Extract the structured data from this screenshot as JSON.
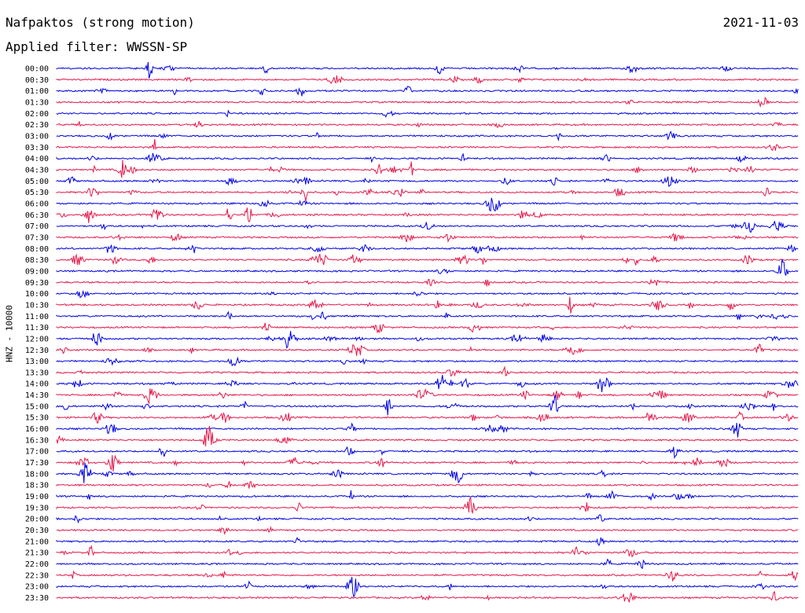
{
  "header": {
    "title": "Nafpaktos (strong motion)",
    "date": "2021-11-03",
    "filter": "Applied filter: WWSSN-SP"
  },
  "chart_data": {
    "type": "line",
    "title": "Nafpaktos (strong motion)",
    "subtitle": "Applied filter: WWSSN-SP",
    "date": "2021-11-03",
    "ylabel": "HNZ - 10000",
    "xlabel": "",
    "colors": {
      "even_rows": "#0000e6",
      "odd_rows": "#e6194b"
    },
    "grid": false,
    "rows": [
      "00:00",
      "00:30",
      "01:00",
      "01:30",
      "02:00",
      "02:30",
      "03:00",
      "03:30",
      "04:00",
      "04:30",
      "05:00",
      "05:30",
      "06:00",
      "06:30",
      "07:00",
      "07:30",
      "08:00",
      "08:30",
      "09:00",
      "09:30",
      "10:00",
      "10:30",
      "11:00",
      "11:30",
      "12:00",
      "12:30",
      "13:00",
      "13:30",
      "14:00",
      "14:30",
      "15:00",
      "15:30",
      "16:00",
      "16:30",
      "17:00",
      "17:30",
      "18:00",
      "18:30",
      "19:00",
      "19:30",
      "20:00",
      "20:30",
      "21:00",
      "21:30",
      "22:00",
      "22:30",
      "23:00",
      "23:30"
    ]
  }
}
